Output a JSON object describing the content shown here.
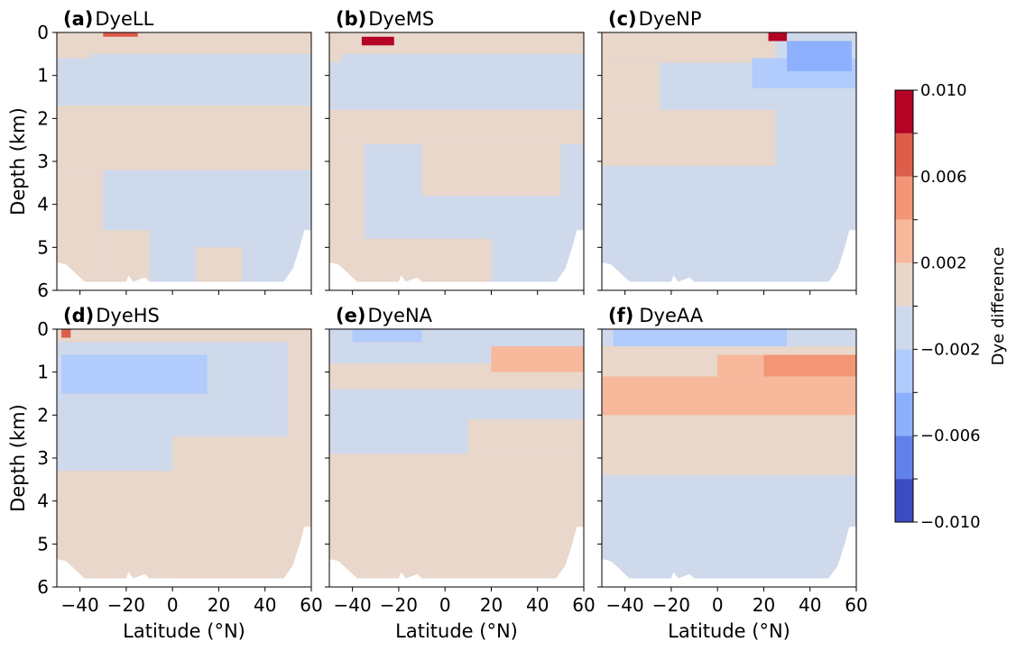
{
  "chart_data": {
    "type": "heatmap",
    "xlabel": "Latitude (°N)",
    "ylabel": "Depth (km)",
    "xlim": [
      -50,
      60
    ],
    "ylim": [
      6,
      0
    ],
    "xticks": [
      -40,
      -20,
      0,
      20,
      40,
      60
    ],
    "xtick_labels": [
      "−40",
      "−20",
      "0",
      "20",
      "40",
      "60"
    ],
    "yticks": [
      0,
      1,
      2,
      3,
      4,
      5,
      6
    ],
    "ytick_labels": [
      "0",
      "1",
      "2",
      "3",
      "4",
      "5",
      "6"
    ],
    "colorbar": {
      "label": "Dye difference",
      "levels": [
        -0.01,
        -0.008,
        -0.006,
        -0.004,
        -0.002,
        0.0,
        0.002,
        0.004,
        0.006,
        0.008,
        0.01
      ],
      "colors": [
        "#3b4cc0",
        "#6282ea",
        "#8db0fe",
        "#b0cbfc",
        "#cfd9ec",
        "#e9d7cb",
        "#f7b89c",
        "#f39577",
        "#dc5d4a",
        "#b40426"
      ],
      "tick_values": [
        -0.01,
        -0.006,
        -0.002,
        0.002,
        0.006,
        0.01
      ],
      "tick_labels": [
        "−0.010",
        "−0.006",
        "−0.002",
        "0.002",
        "0.006",
        "0.010"
      ]
    },
    "panels": [
      {
        "id": "a",
        "tag": "(a)",
        "name": "DyeLL",
        "background_level": -0.001,
        "regions": [
          {
            "level": 0.001,
            "lat": [
              -50,
              60
            ],
            "depth": [
              0,
              0.6
            ]
          },
          {
            "level": -0.001,
            "lat": [
              -35,
              60
            ],
            "depth": [
              0.5,
              1.7
            ]
          },
          {
            "level": 0.001,
            "lat": [
              -50,
              60
            ],
            "depth": [
              1.7,
              3.2
            ]
          },
          {
            "level": 0.001,
            "lat": [
              -50,
              -30
            ],
            "depth": [
              3.2,
              5.8
            ]
          },
          {
            "level": 0.001,
            "lat": [
              -30,
              -10
            ],
            "depth": [
              4.6,
              5.8
            ]
          },
          {
            "level": 0.001,
            "lat": [
              10,
              30
            ],
            "depth": [
              5.0,
              5.8
            ]
          },
          {
            "level": 0.007,
            "lat": [
              -30,
              -15
            ],
            "depth": [
              0.0,
              0.1
            ]
          }
        ]
      },
      {
        "id": "b",
        "tag": "(b)",
        "name": "DyeMS",
        "background_level": -0.001,
        "regions": [
          {
            "level": 0.001,
            "lat": [
              -50,
              60
            ],
            "depth": [
              0,
              0.7
            ]
          },
          {
            "level": -0.001,
            "lat": [
              -45,
              60
            ],
            "depth": [
              0.5,
              1.8
            ]
          },
          {
            "level": 0.001,
            "lat": [
              -50,
              60
            ],
            "depth": [
              1.8,
              2.6
            ]
          },
          {
            "level": 0.001,
            "lat": [
              -50,
              -35
            ],
            "depth": [
              2.6,
              5.8
            ]
          },
          {
            "level": 0.001,
            "lat": [
              -10,
              50
            ],
            "depth": [
              2.6,
              3.8
            ]
          },
          {
            "level": 0.001,
            "lat": [
              -35,
              20
            ],
            "depth": [
              4.8,
              5.8
            ]
          },
          {
            "level": 0.009,
            "lat": [
              -36,
              -22
            ],
            "depth": [
              0.1,
              0.3
            ]
          }
        ]
      },
      {
        "id": "c",
        "tag": "(c)",
        "name": "DyeNP",
        "background_level": -0.001,
        "regions": [
          {
            "level": 0.001,
            "lat": [
              -50,
              25
            ],
            "depth": [
              0,
              0.7
            ]
          },
          {
            "level": 0.001,
            "lat": [
              -50,
              25
            ],
            "depth": [
              1.8,
              3.1
            ]
          },
          {
            "level": 0.001,
            "lat": [
              -50,
              -25
            ],
            "depth": [
              0.7,
              1.8
            ]
          },
          {
            "level": -0.003,
            "lat": [
              15,
              60
            ],
            "depth": [
              0.6,
              1.3
            ]
          },
          {
            "level": -0.005,
            "lat": [
              30,
              58
            ],
            "depth": [
              0.2,
              0.9
            ]
          },
          {
            "level": 0.009,
            "lat": [
              22,
              30
            ],
            "depth": [
              0.0,
              0.2
            ]
          }
        ]
      },
      {
        "id": "d",
        "tag": "(d)",
        "name": "DyeHS",
        "background_level": 0.001,
        "regions": [
          {
            "level": -0.001,
            "lat": [
              -50,
              50
            ],
            "depth": [
              0.3,
              3.3
            ]
          },
          {
            "level": -0.003,
            "lat": [
              -48,
              15
            ],
            "depth": [
              0.6,
              1.5
            ]
          },
          {
            "level": 0.001,
            "lat": [
              -50,
              -20
            ],
            "depth": [
              3.6,
              5.8
            ]
          },
          {
            "level": 0.001,
            "lat": [
              0,
              60
            ],
            "depth": [
              2.5,
              5.8
            ]
          },
          {
            "level": 0.006,
            "lat": [
              -48,
              -44
            ],
            "depth": [
              0.0,
              0.2
            ]
          }
        ]
      },
      {
        "id": "e",
        "tag": "(e)",
        "name": "DyeNA",
        "background_level": 0.001,
        "regions": [
          {
            "level": -0.001,
            "lat": [
              -50,
              60
            ],
            "depth": [
              0,
              0.8
            ]
          },
          {
            "level": 0.001,
            "lat": [
              -50,
              60
            ],
            "depth": [
              0.8,
              1.4
            ]
          },
          {
            "level": 0.003,
            "lat": [
              20,
              60
            ],
            "depth": [
              0.4,
              1.0
            ]
          },
          {
            "level": -0.001,
            "lat": [
              -50,
              60
            ],
            "depth": [
              1.4,
              2.9
            ]
          },
          {
            "level": 0.001,
            "lat": [
              10,
              60
            ],
            "depth": [
              2.1,
              2.9
            ]
          },
          {
            "level": -0.003,
            "lat": [
              -40,
              -10
            ],
            "depth": [
              0.0,
              0.3
            ]
          }
        ]
      },
      {
        "id": "f",
        "tag": "(f)",
        "name": "DyeAA",
        "background_level": -0.001,
        "regions": [
          {
            "level": 0.001,
            "lat": [
              -50,
              60
            ],
            "depth": [
              0.4,
              3.4
            ]
          },
          {
            "level": 0.003,
            "lat": [
              -50,
              60
            ],
            "depth": [
              1.1,
              2.0
            ]
          },
          {
            "level": 0.003,
            "lat": [
              0,
              60
            ],
            "depth": [
              0.6,
              1.1
            ]
          },
          {
            "level": 0.005,
            "lat": [
              20,
              60
            ],
            "depth": [
              0.6,
              1.1
            ]
          },
          {
            "level": -0.003,
            "lat": [
              -45,
              30
            ],
            "depth": [
              0.0,
              0.4
            ]
          }
        ]
      }
    ]
  }
}
